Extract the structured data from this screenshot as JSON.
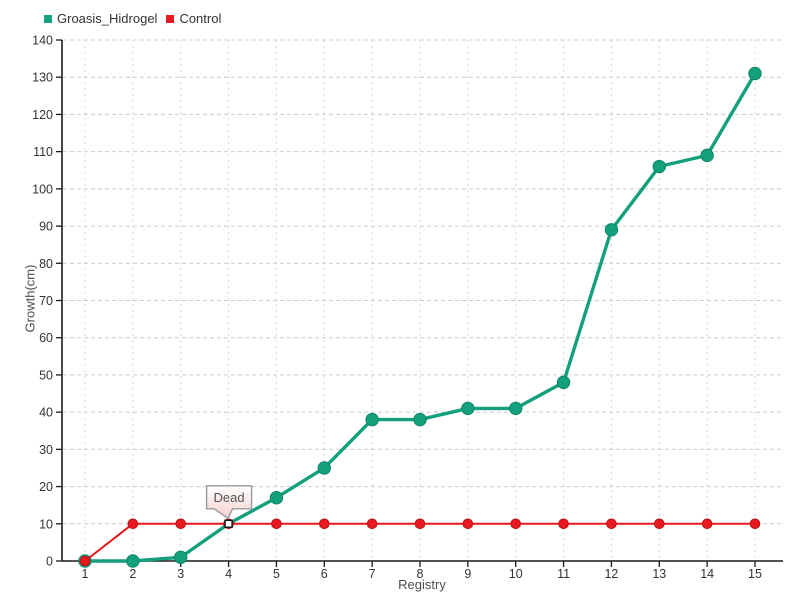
{
  "chart_data": {
    "type": "line",
    "title": "",
    "xlabel": "Registry",
    "ylabel": "Growth(cm)",
    "x": [
      1,
      2,
      3,
      4,
      5,
      6,
      7,
      8,
      9,
      10,
      11,
      12,
      13,
      14,
      15
    ],
    "ylim": [
      0,
      140
    ],
    "ytick_step": 10,
    "grid": true,
    "legend_position": "top-left",
    "series": [
      {
        "name": "Groasis_Hidrogel",
        "color": "#14A07D",
        "dot_stroke": "#0D8668",
        "values": [
          0,
          0,
          1,
          10,
          17,
          25,
          38,
          38,
          41,
          41,
          48,
          89,
          106,
          109,
          131
        ]
      },
      {
        "name": "Control",
        "color": "#E8191F",
        "dot_stroke": "#C11016",
        "values": [
          0,
          10,
          10,
          10,
          10,
          10,
          10,
          10,
          10,
          10,
          10,
          10,
          10,
          10,
          10
        ]
      }
    ],
    "annotation": {
      "x": 4,
      "y": 10,
      "label": "Dead"
    },
    "colors": {
      "grid_h": "#cccccc",
      "grid_v": "#d6d6d6",
      "axis": "#1a1a1a",
      "tick_text": "#333333",
      "title_text": "#4d4d4d",
      "tooltip_border": "#999999",
      "tooltip_fill_top": "#ffffff",
      "tooltip_fill_bottom": "#f6d0d0",
      "tooltip_text": "#555555"
    }
  }
}
